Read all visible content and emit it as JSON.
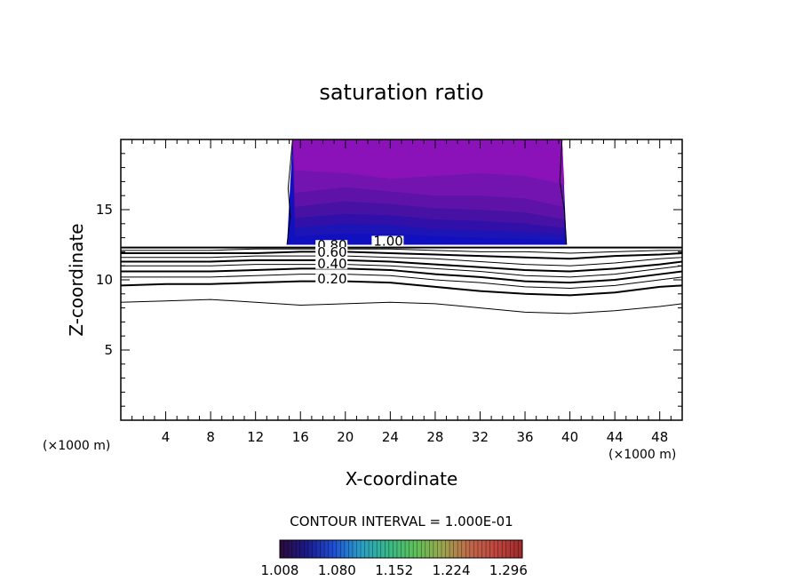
{
  "chart_data": {
    "type": "contour",
    "title": "saturation ratio",
    "xlabel": "X-coordinate",
    "ylabel": "Z-coordinate",
    "x_unit": "(×1000 m)",
    "y_unit": "(×1000 m)",
    "xlim": [
      0,
      50
    ],
    "ylim": [
      0,
      20
    ],
    "x_ticks": [
      4,
      8,
      12,
      16,
      20,
      24,
      28,
      32,
      36,
      40,
      44,
      48
    ],
    "y_ticks": [
      5,
      10,
      15
    ],
    "contour_interval_text": "CONTOUR INTERVAL = 1.000E-01",
    "colorbar": {
      "tick_labels": [
        "1.008",
        "1.080",
        "1.152",
        "1.224",
        "1.296"
      ],
      "colors": [
        "#2b0a3a",
        "#1a1a8c",
        "#1f4fd6",
        "#2a9fc7",
        "#36b88a",
        "#5cc25a",
        "#9aa84e",
        "#c06a4a",
        "#c0463e",
        "#a02a2a"
      ]
    },
    "contour_labels": [
      {
        "text": "1.00",
        "x": 22.5,
        "z": 12.5
      },
      {
        "text": "0.80",
        "x": 17.5,
        "z": 12.2
      },
      {
        "text": "0.60",
        "x": 17.5,
        "z": 11.7
      },
      {
        "text": "0.40",
        "x": 17.5,
        "z": 10.9
      },
      {
        "text": "0.20",
        "x": 17.5,
        "z": 9.8
      }
    ],
    "contour_lines": [
      {
        "level": 1.0,
        "z": [
          12.3,
          12.3,
          12.3,
          12.3,
          12.3,
          12.3,
          12.3,
          12.3,
          12.3,
          12.3,
          12.3,
          12.3,
          12.3,
          12.3
        ]
      },
      {
        "level": 0.9,
        "z": [
          12.1,
          12.1,
          12.1,
          12.2,
          12.2,
          12.2,
          12.2,
          12.1,
          12.0,
          12.0,
          11.9,
          12.0,
          12.1,
          12.1
        ]
      },
      {
        "level": 0.8,
        "z": [
          11.9,
          11.9,
          11.9,
          11.9,
          12.0,
          12.0,
          11.9,
          11.8,
          11.7,
          11.6,
          11.5,
          11.7,
          11.8,
          11.9
        ]
      },
      {
        "level": 0.7,
        "z": [
          11.6,
          11.6,
          11.6,
          11.7,
          11.7,
          11.7,
          11.6,
          11.5,
          11.3,
          11.1,
          11.0,
          11.2,
          11.5,
          11.6
        ]
      },
      {
        "level": 0.6,
        "z": [
          11.3,
          11.3,
          11.3,
          11.4,
          11.4,
          11.4,
          11.3,
          11.1,
          10.9,
          10.7,
          10.6,
          10.8,
          11.1,
          11.3
        ]
      },
      {
        "level": 0.5,
        "z": [
          11.0,
          11.0,
          11.0,
          11.1,
          11.1,
          11.1,
          11.0,
          10.8,
          10.6,
          10.3,
          10.2,
          10.4,
          10.8,
          11.0
        ]
      },
      {
        "level": 0.4,
        "z": [
          10.6,
          10.6,
          10.6,
          10.7,
          10.8,
          10.8,
          10.7,
          10.4,
          10.2,
          9.9,
          9.8,
          10.0,
          10.4,
          10.6
        ]
      },
      {
        "level": 0.3,
        "z": [
          10.2,
          10.2,
          10.2,
          10.3,
          10.4,
          10.4,
          10.3,
          10.0,
          9.8,
          9.5,
          9.4,
          9.6,
          10.0,
          10.2
        ]
      },
      {
        "level": 0.2,
        "z": [
          9.6,
          9.7,
          9.7,
          9.8,
          9.9,
          9.9,
          9.8,
          9.5,
          9.2,
          9.0,
          8.9,
          9.1,
          9.5,
          9.6
        ]
      },
      {
        "level": 0.1,
        "z": [
          8.4,
          8.5,
          8.6,
          8.4,
          8.2,
          8.3,
          8.4,
          8.3,
          8.0,
          7.7,
          7.6,
          7.8,
          8.1,
          8.3
        ]
      }
    ],
    "contour_x": [
      0,
      4,
      8,
      12,
      16,
      20,
      24,
      28,
      32,
      36,
      40,
      44,
      48,
      50
    ],
    "filled_region": {
      "x_range": [
        14.8,
        39.7
      ],
      "z_range": [
        12.5,
        20
      ],
      "bands": [
        {
          "color": "#8a12b8",
          "z": [
            17.8,
            17.6,
            17.2,
            17.4,
            17.6,
            17.4,
            16.8
          ]
        },
        {
          "color": "#7414b0",
          "z": [
            16.2,
            16.6,
            16.3,
            16.0,
            16.0,
            15.8,
            15.2
          ]
        },
        {
          "color": "#5f12a8",
          "z": [
            15.2,
            15.6,
            15.4,
            15.1,
            15.0,
            14.8,
            14.3
          ]
        },
        {
          "color": "#4712a4",
          "z": [
            14.4,
            14.7,
            14.6,
            14.3,
            14.2,
            14.0,
            13.7
          ]
        },
        {
          "color": "#3010a8",
          "z": [
            13.7,
            14.0,
            13.9,
            13.6,
            13.5,
            13.4,
            13.2
          ]
        },
        {
          "color": "#1c14b4",
          "z": [
            13.1,
            13.3,
            13.3,
            13.1,
            13.0,
            12.9,
            12.8
          ]
        }
      ],
      "band_x": [
        15.5,
        20,
        24,
        28,
        32,
        36,
        39.5
      ]
    }
  }
}
